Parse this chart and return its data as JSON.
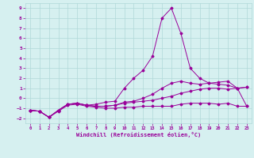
{
  "xlabel": "Windchill (Refroidissement éolien,°C)",
  "bg_color": "#d6f0f0",
  "line_color": "#990099",
  "grid_color": "#b0d8d8",
  "x_ticks": [
    0,
    1,
    2,
    3,
    4,
    5,
    6,
    7,
    8,
    9,
    10,
    11,
    12,
    13,
    14,
    15,
    16,
    17,
    18,
    19,
    20,
    21,
    22,
    23
  ],
  "y_ticks": [
    -2,
    -1,
    0,
    1,
    2,
    3,
    4,
    5,
    6,
    7,
    8,
    9
  ],
  "ylim": [
    -2.5,
    9.5
  ],
  "xlim": [
    -0.5,
    23.5
  ],
  "series": [
    {
      "x": [
        0,
        1,
        2,
        3,
        4,
        5,
        6,
        7,
        8,
        9,
        10,
        11,
        12,
        13,
        14,
        15,
        16,
        17,
        18,
        19,
        20,
        21,
        22,
        23
      ],
      "y": [
        -1.2,
        -1.3,
        -1.9,
        -1.3,
        -0.7,
        -0.6,
        -0.8,
        -0.9,
        -1.0,
        -1.0,
        -0.9,
        -0.9,
        -0.8,
        -0.8,
        -0.8,
        -0.8,
        -0.6,
        -0.5,
        -0.5,
        -0.5,
        -0.6,
        -0.5,
        -0.8,
        -0.8
      ]
    },
    {
      "x": [
        0,
        1,
        2,
        3,
        4,
        5,
        6,
        7,
        8,
        9,
        10,
        11,
        12,
        13,
        14,
        15,
        16,
        17,
        18,
        19,
        20,
        21,
        22,
        23
      ],
      "y": [
        -1.2,
        -1.3,
        -1.9,
        -1.2,
        -0.6,
        -0.5,
        -0.7,
        -0.8,
        -0.8,
        -0.7,
        -0.5,
        -0.4,
        -0.3,
        -0.2,
        0.0,
        0.2,
        0.5,
        0.7,
        0.9,
        1.0,
        1.0,
        0.9,
        1.0,
        1.1
      ]
    },
    {
      "x": [
        0,
        1,
        2,
        3,
        4,
        5,
        6,
        7,
        8,
        9,
        10,
        11,
        12,
        13,
        14,
        15,
        16,
        17,
        18,
        19,
        20,
        21,
        22,
        23
      ],
      "y": [
        -1.2,
        -1.3,
        -1.9,
        -1.2,
        -0.6,
        -0.5,
        -0.7,
        -0.8,
        -0.8,
        -0.7,
        -0.4,
        -0.3,
        0.0,
        0.4,
        1.0,
        1.5,
        1.7,
        1.5,
        1.4,
        1.5,
        1.6,
        1.7,
        1.0,
        1.1
      ]
    },
    {
      "x": [
        0,
        1,
        2,
        3,
        4,
        5,
        6,
        7,
        8,
        9,
        10,
        11,
        12,
        13,
        14,
        15,
        16,
        17,
        18,
        19,
        20,
        21,
        22,
        23
      ],
      "y": [
        -1.2,
        -1.3,
        -1.9,
        -1.2,
        -0.6,
        -0.5,
        -0.7,
        -0.6,
        -0.4,
        -0.3,
        1.0,
        2.0,
        2.8,
        4.2,
        8.0,
        9.0,
        6.5,
        3.0,
        2.0,
        1.5,
        1.4,
        1.3,
        1.0,
        -0.8
      ]
    }
  ]
}
